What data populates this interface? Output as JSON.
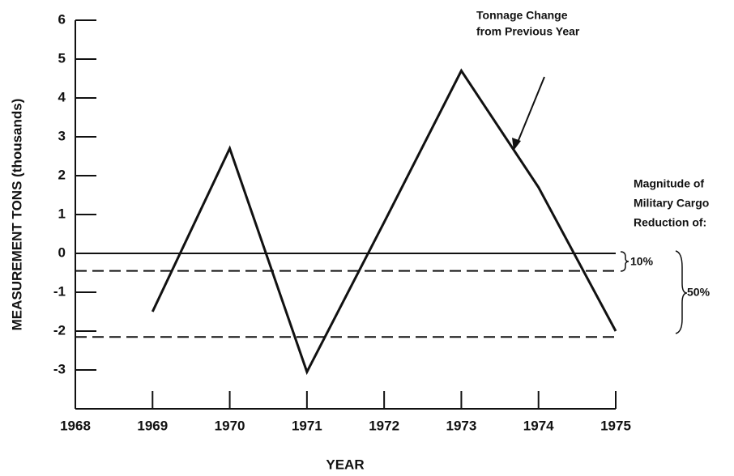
{
  "chart_data": {
    "type": "line",
    "x_label": "YEAR",
    "y_label": "MEASUREMENT TONS (thousands)",
    "x": [
      1969,
      1970,
      1971,
      1972,
      1973,
      1974,
      1975
    ],
    "series": [
      {
        "color": "#111111",
        "values": [
          -1.5,
          2.7,
          -3.05,
          0.8,
          4.7,
          1.7,
          -2.0
        ]
      }
    ],
    "xlim": [
      1968,
      1975
    ],
    "xticks": [
      1968,
      1969,
      1970,
      1971,
      1972,
      1973,
      1974,
      1975
    ],
    "ylim": [
      -4,
      6
    ],
    "yticks": [
      -3,
      -2,
      -1,
      0,
      1,
      2,
      3,
      4,
      5,
      6
    ],
    "reference_lines": [
      {
        "value": 0,
        "dashed": false
      },
      {
        "value": -0.45,
        "dashed": true
      },
      {
        "value": -2.15,
        "dashed": true
      }
    ],
    "annotations": {
      "series_note": [
        "Tonnage Change",
        "from Previous Year"
      ],
      "reduction_note": [
        "Magnitude of",
        "Military Cargo",
        "Reduction of:"
      ],
      "small_reduction": "10%",
      "large_reduction": "50%"
    }
  }
}
